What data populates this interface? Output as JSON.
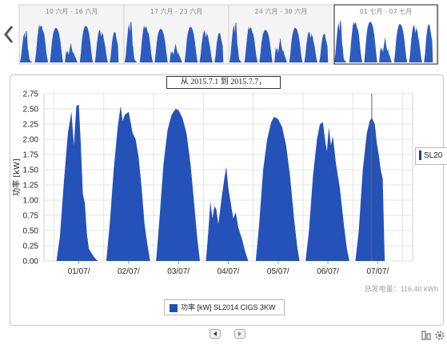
{
  "navigator": {
    "weeks": [
      "10 六月 - 16 六月",
      "17 六月 - 23 六月",
      "24 六月 - 30 六月",
      "01 七月 - 07 七月"
    ],
    "selected_week": 3
  },
  "chart_data": {
    "type": "area",
    "title": "从 2015.7.1 到 2015.7.7，",
    "ylabel": "功率 [kW]",
    "ylim": [
      0,
      2.75
    ],
    "yticks": [
      "0.00",
      "0.25",
      "0.50",
      "0.75",
      "1.00",
      "1.25",
      "1.50",
      "1.75",
      "2.00",
      "2.25",
      "2.50",
      "2.75"
    ],
    "categories": [
      "01/07/",
      "02/07/",
      "03/07/",
      "04/07/",
      "05/07/",
      "06/07/",
      "07/07/"
    ],
    "grid": true,
    "series": [
      {
        "name": "SL2014 CIGS 3KW",
        "color": "#2452b8",
        "days": [
          [
            [
              0.05,
              0
            ],
            [
              0.12,
              0.4
            ],
            [
              0.2,
              1.3
            ],
            [
              0.28,
              2.1
            ],
            [
              0.35,
              2.45
            ],
            [
              0.4,
              1.9
            ],
            [
              0.45,
              2.55
            ],
            [
              0.5,
              2.57
            ],
            [
              0.54,
              1.9
            ],
            [
              0.58,
              1.1
            ],
            [
              0.62,
              0.95
            ],
            [
              0.66,
              0.45
            ],
            [
              0.7,
              0.2
            ],
            [
              0.76,
              0.12
            ],
            [
              0.82,
              0.05
            ],
            [
              0.88,
              0
            ]
          ],
          [
            [
              0.05,
              0
            ],
            [
              0.12,
              0.6
            ],
            [
              0.2,
              1.5
            ],
            [
              0.28,
              2.2
            ],
            [
              0.34,
              2.55
            ],
            [
              0.38,
              2.3
            ],
            [
              0.42,
              2.4
            ],
            [
              0.5,
              2.45
            ],
            [
              0.58,
              2.1
            ],
            [
              0.64,
              2.0
            ],
            [
              0.7,
              1.7
            ],
            [
              0.76,
              1.2
            ],
            [
              0.82,
              0.6
            ],
            [
              0.88,
              0.25
            ],
            [
              0.93,
              0
            ]
          ],
          [
            [
              0.05,
              0
            ],
            [
              0.12,
              0.7
            ],
            [
              0.2,
              1.6
            ],
            [
              0.28,
              2.15
            ],
            [
              0.36,
              2.4
            ],
            [
              0.44,
              2.5
            ],
            [
              0.5,
              2.48
            ],
            [
              0.58,
              2.35
            ],
            [
              0.66,
              2.1
            ],
            [
              0.74,
              1.6
            ],
            [
              0.82,
              0.9
            ],
            [
              0.88,
              0.35
            ],
            [
              0.93,
              0
            ]
          ],
          [
            [
              0.05,
              0
            ],
            [
              0.1,
              0.5
            ],
            [
              0.14,
              0.98
            ],
            [
              0.18,
              0.7
            ],
            [
              0.22,
              0.9
            ],
            [
              0.26,
              0.85
            ],
            [
              0.3,
              0.6
            ],
            [
              0.36,
              1.0
            ],
            [
              0.42,
              1.35
            ],
            [
              0.46,
              1.55
            ],
            [
              0.5,
              1.2
            ],
            [
              0.55,
              0.95
            ],
            [
              0.6,
              0.7
            ],
            [
              0.65,
              0.8
            ],
            [
              0.7,
              0.55
            ],
            [
              0.78,
              0.35
            ],
            [
              0.84,
              0.15
            ],
            [
              0.9,
              0
            ]
          ],
          [
            [
              0.05,
              0
            ],
            [
              0.12,
              0.6
            ],
            [
              0.2,
              1.5
            ],
            [
              0.28,
              2.0
            ],
            [
              0.36,
              2.28
            ],
            [
              0.42,
              2.37
            ],
            [
              0.5,
              2.33
            ],
            [
              0.58,
              2.2
            ],
            [
              0.66,
              1.9
            ],
            [
              0.74,
              1.4
            ],
            [
              0.82,
              0.7
            ],
            [
              0.88,
              0.25
            ],
            [
              0.93,
              0
            ]
          ],
          [
            [
              0.05,
              0
            ],
            [
              0.12,
              0.5
            ],
            [
              0.2,
              1.4
            ],
            [
              0.28,
              2.0
            ],
            [
              0.34,
              2.25
            ],
            [
              0.4,
              2.28
            ],
            [
              0.44,
              2.0
            ],
            [
              0.48,
              1.8
            ],
            [
              0.52,
              2.2
            ],
            [
              0.56,
              1.9
            ],
            [
              0.6,
              2.05
            ],
            [
              0.66,
              1.6
            ],
            [
              0.74,
              1.2
            ],
            [
              0.82,
              0.6
            ],
            [
              0.88,
              0.2
            ],
            [
              0.93,
              0
            ]
          ],
          [
            [
              0.05,
              0
            ],
            [
              0.12,
              0.5
            ],
            [
              0.2,
              1.5
            ],
            [
              0.28,
              2.1
            ],
            [
              0.34,
              2.3
            ],
            [
              0.38,
              2.36
            ],
            [
              0.44,
              2.25
            ],
            [
              0.48,
              1.95
            ],
            [
              0.52,
              1.75
            ],
            [
              0.56,
              1.5
            ],
            [
              0.6,
              1.35
            ],
            [
              0.64,
              0
            ]
          ]
        ]
      }
    ],
    "total_energy_label": "总发电量：116.40 kWh",
    "legend_label": "功率 [kW] SL2014 CIGS 3KW",
    "series_tag": "SL20"
  }
}
